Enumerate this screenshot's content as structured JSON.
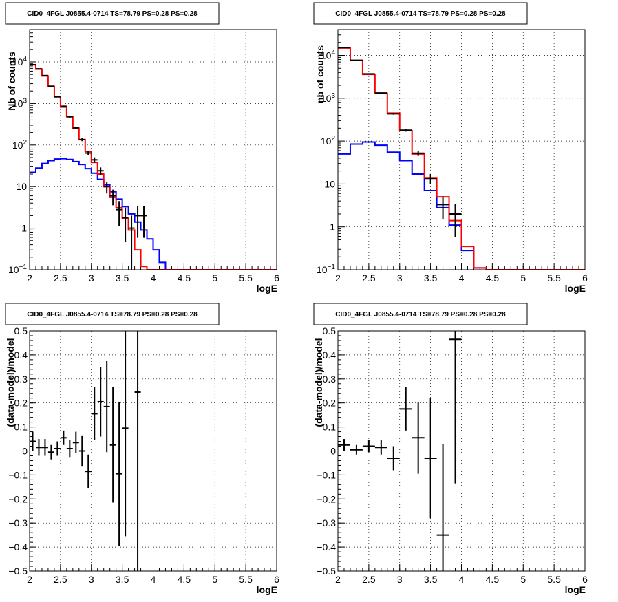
{
  "panels": [
    {
      "title": "CID0_4FGL J0855.4-0714 TS=78.79 PS=0.28 PS=0.28",
      "xlabel": "logE",
      "ylabel": "Nb of counts"
    },
    {
      "title": "CID0_4FGL J0855.4-0714 TS=78.79 PS=0.28 PS=0.28",
      "xlabel": "logE",
      "ylabel": "nb of counts"
    },
    {
      "title": "CID0_4FGL J0855.4-0714 TS=78.79 PS=0.28 PS=0.28",
      "xlabel": "logE",
      "ylabel": "(data-model)/model"
    },
    {
      "title": "CID0_4FGL J0855.4-0714 TS=78.79 PS=0.28 PS=0.28",
      "xlabel": "logE",
      "ylabel": "(data-model)/model"
    }
  ],
  "colors": {
    "data": "#000000",
    "total_model": "#ff0000",
    "source_model": "#0000ff",
    "grid": "#000000"
  },
  "chart_data": [
    {
      "type": "line",
      "title": "CID0_4FGL J0855.4-0714 TS=78.79 PS=0.28 PS=0.28",
      "xlabel": "logE",
      "ylabel": "Nb of counts",
      "xlim": [
        2,
        6
      ],
      "ylim": [
        0.1,
        60000
      ],
      "yscale": "log",
      "grid": true,
      "xticks": [
        "2",
        "2.5",
        "3",
        "3.5",
        "4",
        "4.5",
        "5",
        "5.5",
        "6"
      ],
      "yticks": [
        {
          "value": 0.1,
          "label": "10⁻¹"
        },
        {
          "value": 1,
          "label": "1"
        },
        {
          "value": 10,
          "label": "10"
        },
        {
          "value": 100,
          "label": "10²"
        },
        {
          "value": 1000,
          "label": "10³"
        },
        {
          "value": 10000,
          "label": "10⁴"
        }
      ],
      "bin_edges": [
        2.0,
        2.1,
        2.2,
        2.3,
        2.4,
        2.5,
        2.6,
        2.7,
        2.8,
        2.9,
        3.0,
        3.1,
        3.2,
        3.3,
        3.4,
        3.5,
        3.6,
        3.7,
        3.8,
        3.9,
        4.0,
        4.1,
        4.2,
        4.3,
        4.4,
        4.5,
        4.6,
        4.7,
        4.8,
        4.9,
        5.0,
        5.1,
        5.2,
        5.3,
        5.4,
        5.5,
        5.6,
        5.7,
        5.8,
        5.9,
        6.0
      ],
      "series": [
        {
          "role": "total_model",
          "values": [
            8500,
            6700,
            4600,
            2600,
            1450,
            820,
            480,
            255,
            135,
            70,
            38,
            20,
            10,
            5.5,
            3.1,
            1.7,
            0.9,
            0.3,
            0.12,
            0.1,
            0.1,
            0.1,
            0.1,
            0.1,
            0.1,
            0.1,
            0.1,
            0.1,
            0.1,
            0.1,
            0.1,
            0.1,
            0.1,
            0.1,
            0.1,
            0.1,
            0.1,
            0.1,
            0.1,
            0.1
          ]
        },
        {
          "role": "source_model",
          "values": [
            22,
            28,
            36,
            42,
            46,
            47,
            45,
            40,
            34,
            27,
            21,
            15,
            11,
            7.5,
            5,
            3.3,
            2.2,
            1.4,
            0.9,
            0.55,
            0.3,
            0.15,
            0.1,
            0.1,
            0.1,
            0.1,
            0.1,
            0.1,
            0.1,
            0.1,
            0.1,
            0.1,
            0.1,
            0.1,
            0.1,
            0.1,
            0.1,
            0.1,
            0.1,
            0.1
          ]
        },
        {
          "role": "data",
          "points": [
            {
              "x": 2.05,
              "y": 8600
            },
            {
              "x": 2.15,
              "y": 6800
            },
            {
              "x": 2.25,
              "y": 4700
            },
            {
              "x": 2.35,
              "y": 2600
            },
            {
              "x": 2.45,
              "y": 1450
            },
            {
              "x": 2.55,
              "y": 860
            },
            {
              "x": 2.65,
              "y": 480
            },
            {
              "x": 2.75,
              "y": 260
            },
            {
              "x": 2.85,
              "y": 135
            },
            {
              "x": 2.95,
              "y": 64
            },
            {
              "x": 3.05,
              "y": 44
            },
            {
              "x": 3.15,
              "y": 24
            },
            {
              "x": 3.25,
              "y": 10
            },
            {
              "x": 3.35,
              "y": 6
            },
            {
              "x": 3.45,
              "y": 2.8
            },
            {
              "x": 3.55,
              "y": 1.8
            },
            {
              "x": 3.65,
              "y": 1
            },
            {
              "x": 3.75,
              "y": 2
            },
            {
              "x": 3.85,
              "y": 2
            }
          ]
        }
      ]
    },
    {
      "type": "line",
      "title": "CID0_4FGL J0855.4-0714 TS=78.79 PS=0.28 PS=0.28",
      "xlabel": "logE",
      "ylabel": "nb of counts",
      "xlim": [
        2,
        6
      ],
      "ylim": [
        0.1,
        40000
      ],
      "yscale": "log",
      "grid": true,
      "xticks": [
        "2",
        "2.5",
        "3",
        "3.5",
        "4",
        "4.5",
        "5",
        "5.5",
        "6"
      ],
      "yticks": [
        {
          "value": 0.1,
          "label": "10⁻¹"
        },
        {
          "value": 1,
          "label": "1"
        },
        {
          "value": 10,
          "label": "10"
        },
        {
          "value": 100,
          "label": "10²"
        },
        {
          "value": 1000,
          "label": "10³"
        },
        {
          "value": 10000,
          "label": "10⁴"
        }
      ],
      "bin_edges": [
        2.0,
        2.2,
        2.4,
        2.6,
        2.8,
        3.0,
        3.2,
        3.4,
        3.6,
        3.8,
        4.0,
        4.2,
        4.4,
        4.6,
        4.8,
        5.0,
        5.2,
        5.4,
        5.6,
        5.8,
        6.0
      ],
      "series": [
        {
          "role": "total_model",
          "values": [
            14800,
            7600,
            3600,
            1300,
            450,
            175,
            50,
            14,
            5,
            1.4,
            0.35,
            0.11,
            0.1,
            0.1,
            0.1,
            0.1,
            0.1,
            0.1,
            0.1,
            0.1
          ]
        },
        {
          "role": "source_model",
          "values": [
            50,
            85,
            95,
            80,
            55,
            35,
            17,
            7,
            2.8,
            1.1,
            0.28,
            0.11,
            0.1,
            0.1,
            0.1,
            0.1,
            0.1,
            0.1,
            0.1,
            0.1
          ]
        },
        {
          "role": "data",
          "points": [
            {
              "x": 2.1,
              "y": 15200
            },
            {
              "x": 2.3,
              "y": 7700
            },
            {
              "x": 2.5,
              "y": 3700
            },
            {
              "x": 2.7,
              "y": 1330
            },
            {
              "x": 2.9,
              "y": 435
            },
            {
              "x": 3.1,
              "y": 180
            },
            {
              "x": 3.3,
              "y": 52
            },
            {
              "x": 3.5,
              "y": 13.5
            },
            {
              "x": 3.7,
              "y": 3.3
            },
            {
              "x": 3.9,
              "y": 2
            }
          ]
        }
      ]
    },
    {
      "type": "scatter",
      "title": "CID0_4FGL J0855.4-0714 TS=78.79 PS=0.28 PS=0.28",
      "xlabel": "logE",
      "ylabel": "(data-model)/model",
      "xlim": [
        2,
        6
      ],
      "ylim": [
        -0.5,
        0.5
      ],
      "grid": true,
      "xticks": [
        "2",
        "2.5",
        "3",
        "3.5",
        "4",
        "4.5",
        "5",
        "5.5",
        "6"
      ],
      "yticks": [
        "−0.5",
        "−0.4",
        "−0.3",
        "−0.2",
        "−0.1",
        "0",
        "0.1",
        "0.2",
        "0.3",
        "0.4",
        "0.5"
      ],
      "points": [
        {
          "x": 2.05,
          "y": 0.04,
          "yerr": 0.04
        },
        {
          "x": 2.15,
          "y": 0.015,
          "yerr": 0.035
        },
        {
          "x": 2.25,
          "y": 0.015,
          "yerr": 0.035
        },
        {
          "x": 2.35,
          "y": -0.005,
          "yerr": 0.03
        },
        {
          "x": 2.45,
          "y": 0.01,
          "yerr": 0.03
        },
        {
          "x": 2.55,
          "y": 0.055,
          "yerr": 0.03
        },
        {
          "x": 2.65,
          "y": 0.01,
          "yerr": 0.035
        },
        {
          "x": 2.75,
          "y": 0.035,
          "yerr": 0.045
        },
        {
          "x": 2.85,
          "y": 0.0,
          "yerr": 0.065
        },
        {
          "x": 2.95,
          "y": -0.085,
          "yerr": 0.07
        },
        {
          "x": 3.05,
          "y": 0.155,
          "yerr": 0.11
        },
        {
          "x": 3.15,
          "y": 0.205,
          "yerr": 0.145
        },
        {
          "x": 3.25,
          "y": 0.185,
          "yerr": 0.19
        },
        {
          "x": 3.35,
          "y": 0.025,
          "yerr": 0.24
        },
        {
          "x": 3.45,
          "y": -0.095,
          "yerr": 0.3
        },
        {
          "x": 3.55,
          "y": 0.095,
          "yerr": 0.45
        },
        {
          "x": 3.75,
          "y": 0.245,
          "yerr": 0.75
        }
      ]
    },
    {
      "type": "scatter",
      "title": "CID0_4FGL J0855.4-0714 TS=78.79 PS=0.28 PS=0.28",
      "xlabel": "logE",
      "ylabel": "(data-model)/model",
      "xlim": [
        2,
        6
      ],
      "ylim": [
        -0.5,
        0.5
      ],
      "grid": true,
      "xticks": [
        "2",
        "2.5",
        "3",
        "3.5",
        "4",
        "4.5",
        "5",
        "5.5",
        "6"
      ],
      "yticks": [
        "−0.5",
        "−0.4",
        "−0.3",
        "−0.2",
        "−0.1",
        "0",
        "0.1",
        "0.2",
        "0.3",
        "0.4",
        "0.5"
      ],
      "points": [
        {
          "x": 2.1,
          "y": 0.025,
          "yerr": 0.025
        },
        {
          "x": 2.3,
          "y": 0.005,
          "yerr": 0.02
        },
        {
          "x": 2.5,
          "y": 0.02,
          "yerr": 0.025
        },
        {
          "x": 2.7,
          "y": 0.015,
          "yerr": 0.03
        },
        {
          "x": 2.9,
          "y": -0.03,
          "yerr": 0.05
        },
        {
          "x": 3.1,
          "y": 0.175,
          "yerr": 0.09
        },
        {
          "x": 3.3,
          "y": 0.055,
          "yerr": 0.15
        },
        {
          "x": 3.5,
          "y": -0.03,
          "yerr": 0.25
        },
        {
          "x": 3.7,
          "y": -0.35,
          "yerr": 0.38
        },
        {
          "x": 3.9,
          "y": 0.465,
          "yerr": 0.6
        }
      ]
    }
  ]
}
